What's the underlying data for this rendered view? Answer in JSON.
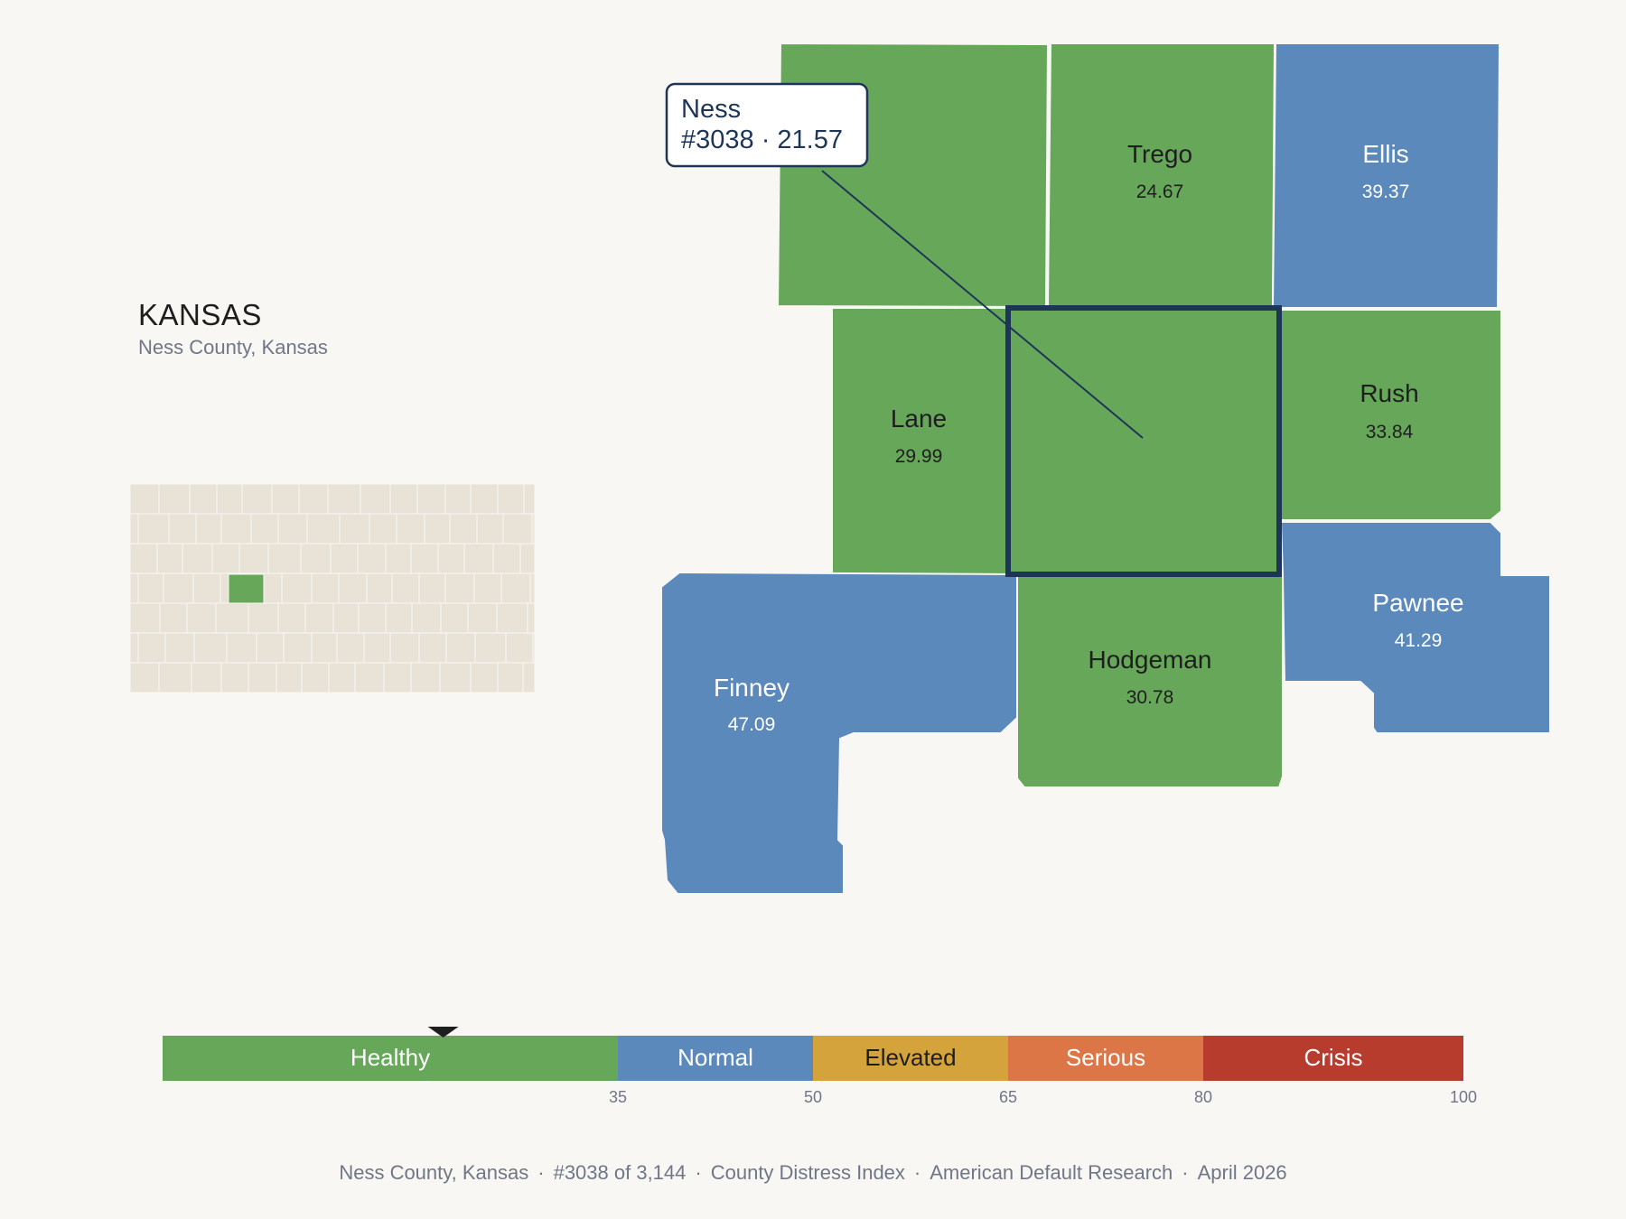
{
  "state": {
    "title": "KANSAS",
    "subtitle": "Ness County, Kansas"
  },
  "tooltip": {
    "name": "Ness",
    "detail": "#3038 · 21.57"
  },
  "colors": {
    "healthy": "#67a75a",
    "normal": "#5b89bb",
    "elevated": "#d4a33b",
    "serious": "#dd7647",
    "crisis": "#b83c2d",
    "inset_land": "#e8e2d7",
    "highlight_outline": "#1d3657",
    "background": "#f9f7f4"
  },
  "counties": [
    {
      "id": "ness",
      "name": "",
      "value": "",
      "category": "healthy",
      "selected": true
    },
    {
      "id": "trego",
      "name": "Trego",
      "value": "24.67",
      "category": "healthy"
    },
    {
      "id": "ellis",
      "name": "Ellis",
      "value": "39.37",
      "category": "normal"
    },
    {
      "id": "lane",
      "name": "Lane",
      "value": "29.99",
      "category": "healthy"
    },
    {
      "id": "rush",
      "name": "Rush",
      "value": "33.84",
      "category": "healthy"
    },
    {
      "id": "pawnee",
      "name": "Pawnee",
      "value": "41.29",
      "category": "normal"
    },
    {
      "id": "finney",
      "name": "Finney",
      "value": "47.09",
      "category": "normal"
    },
    {
      "id": "hodgeman",
      "name": "Hodgeman",
      "value": "30.78",
      "category": "healthy"
    },
    {
      "id": "gove",
      "name": "",
      "value": "",
      "category": "healthy"
    }
  ],
  "legend": {
    "segments": [
      {
        "label": "Healthy",
        "from": 0,
        "to": 35,
        "category": "healthy"
      },
      {
        "label": "Normal",
        "from": 35,
        "to": 50,
        "category": "normal"
      },
      {
        "label": "Elevated",
        "from": 50,
        "to": 65,
        "category": "elevated"
      },
      {
        "label": "Serious",
        "from": 65,
        "to": 80,
        "category": "serious"
      },
      {
        "label": "Crisis",
        "from": 80,
        "to": 100,
        "category": "crisis"
      }
    ],
    "ticks": [
      "35",
      "50",
      "65",
      "80",
      "100"
    ],
    "marker_value": 21.57
  },
  "footer": {
    "location": "Ness County, Kansas",
    "rank": "#3038 of 3,144",
    "index": "County Distress Index",
    "source": "American Default Research",
    "date": "April 2026"
  }
}
